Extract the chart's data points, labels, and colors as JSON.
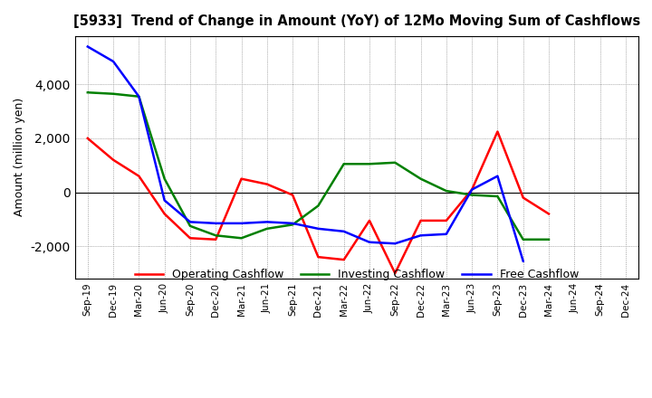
{
  "title": "[5933]  Trend of Change in Amount (YoY) of 12Mo Moving Sum of Cashflows",
  "ylabel": "Amount (million yen)",
  "x_labels": [
    "Sep-19",
    "Dec-19",
    "Mar-20",
    "Jun-20",
    "Sep-20",
    "Dec-20",
    "Mar-21",
    "Jun-21",
    "Sep-21",
    "Dec-21",
    "Mar-22",
    "Jun-22",
    "Sep-22",
    "Dec-22",
    "Mar-23",
    "Jun-23",
    "Sep-23",
    "Dec-23",
    "Mar-24",
    "Jun-24",
    "Sep-24",
    "Dec-24"
  ],
  "operating": [
    2000,
    1200,
    600,
    -800,
    -1700,
    -1750,
    500,
    300,
    -100,
    -2400,
    -2500,
    -1050,
    -3000,
    -1050,
    -1050,
    100,
    2250,
    -200,
    -800,
    null,
    null,
    null
  ],
  "investing": [
    3700,
    3650,
    3550,
    500,
    -1250,
    -1600,
    -1700,
    -1350,
    -1200,
    -500,
    1050,
    1050,
    1100,
    500,
    50,
    -100,
    -150,
    -1750,
    -1750,
    null,
    null,
    null
  ],
  "free": [
    5400,
    4850,
    3550,
    -300,
    -1100,
    -1150,
    -1150,
    -1100,
    -1150,
    -1350,
    -1450,
    -1850,
    -1900,
    -1600,
    -1550,
    100,
    600,
    -2550,
    null,
    null,
    null,
    null
  ],
  "operating_color": "#ff0000",
  "investing_color": "#008000",
  "free_color": "#0000ff",
  "ylim": [
    -3200,
    5800
  ],
  "yticks": [
    -2000,
    0,
    2000,
    4000
  ],
  "background_color": "#ffffff",
  "grid_color": "#888888"
}
